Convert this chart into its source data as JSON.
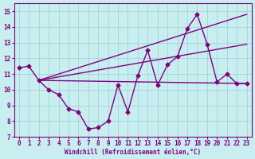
{
  "background_color": "#c8eef0",
  "grid_color": "#a8d8da",
  "line_color": "#800080",
  "xlabel": "Windchill (Refroidissement éolien,°C)",
  "xlim": [
    -0.5,
    23.5
  ],
  "ylim": [
    7,
    15.5
  ],
  "yticks": [
    7,
    8,
    9,
    10,
    11,
    12,
    13,
    14,
    15
  ],
  "xticks": [
    0,
    1,
    2,
    3,
    4,
    5,
    6,
    7,
    8,
    9,
    10,
    11,
    12,
    13,
    14,
    15,
    16,
    17,
    18,
    19,
    20,
    21,
    22,
    23
  ],
  "x_data": [
    0,
    1,
    2,
    3,
    4,
    5,
    6,
    7,
    8,
    9,
    10,
    11,
    12,
    13,
    14,
    15,
    16,
    17,
    18,
    19,
    20,
    21,
    22,
    23
  ],
  "y_data": [
    11.4,
    11.5,
    10.6,
    10.0,
    9.7,
    8.8,
    8.6,
    7.5,
    7.6,
    8.0,
    10.3,
    8.6,
    10.9,
    12.5,
    10.3,
    11.6,
    12.1,
    13.9,
    14.8,
    12.9,
    10.5,
    11.0,
    10.4,
    10.4
  ],
  "line1": {
    "x": [
      2,
      23
    ],
    "y": [
      10.6,
      10.4
    ]
  },
  "line2": {
    "x": [
      2,
      23
    ],
    "y": [
      10.6,
      12.9
    ]
  },
  "line3": {
    "x": [
      2,
      23
    ],
    "y": [
      10.6,
      14.8
    ]
  }
}
